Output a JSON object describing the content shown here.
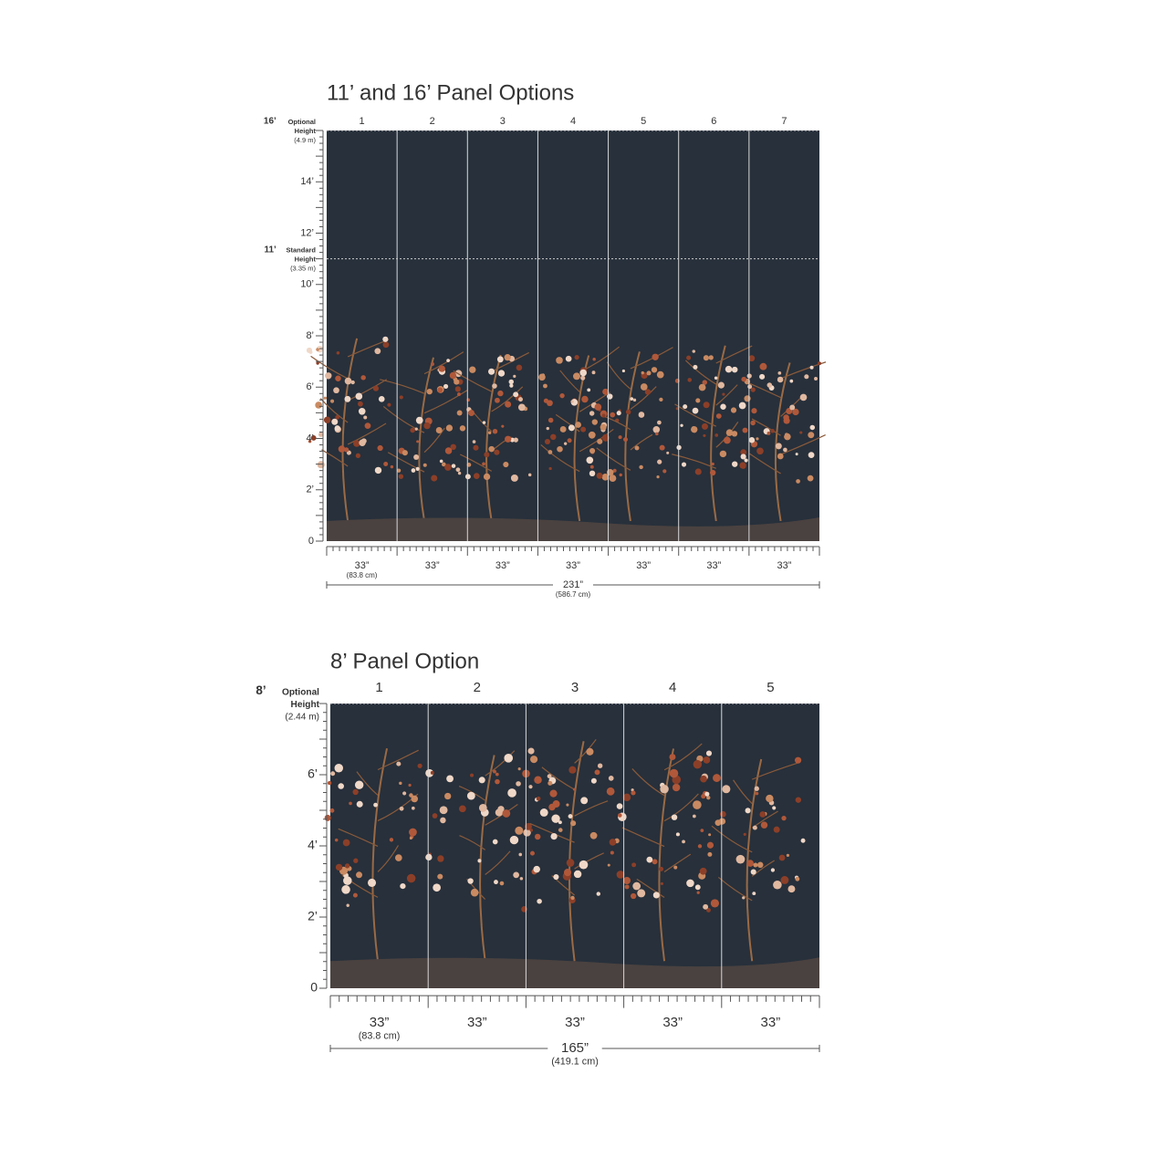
{
  "sections": [
    {
      "title": "11’ and 16’ Panel Options",
      "panels": [
        "1",
        "2",
        "3",
        "4",
        "5",
        "6",
        "7"
      ],
      "axis_labels": [
        "0",
        "2’",
        "4’",
        "6’",
        "8’",
        "10’",
        "12’",
        "14’"
      ],
      "heights": [
        {
          "feet": "16’",
          "kind": "Optional",
          "word": "Height",
          "metric": "(4.9 m)"
        },
        {
          "feet": "11’",
          "kind": "Standard",
          "word": "Height",
          "metric": "(3.35 m)"
        }
      ],
      "panel_widths": [
        "33”",
        "33”",
        "33”",
        "33”",
        "33”",
        "33”",
        "33”"
      ],
      "panel_width_metric": "(83.8 cm)",
      "total": "231”",
      "total_metric": "(586.7 cm)"
    },
    {
      "title": "8’ Panel Option",
      "panels": [
        "1",
        "2",
        "3",
        "4",
        "5"
      ],
      "axis_labels": [
        "0",
        "2’",
        "4’",
        "6’"
      ],
      "heights": [
        {
          "feet": "8’",
          "kind": "Optional",
          "word": "Height",
          "metric": "(2.44 m)"
        }
      ],
      "panel_widths": [
        "33”",
        "33”",
        "33”",
        "33”",
        "33”"
      ],
      "panel_width_metric": "(83.8 cm)",
      "total": "165”",
      "total_metric": "(419.1 cm)"
    }
  ]
}
